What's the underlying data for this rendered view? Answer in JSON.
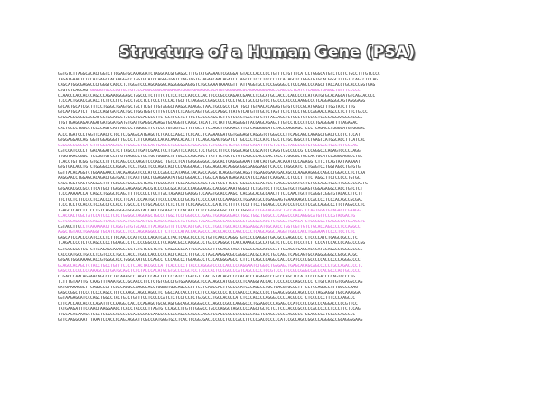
{
  "slide": {
    "title": "Structure of a Human Gene (PSA)"
  },
  "colors": {
    "background": "#ffffff",
    "sequence_text": "#111111",
    "exon_highlight": "#d43ad4",
    "title_fill": "#ffffff",
    "title_outline": "#444444"
  },
  "sequence_lines": [
    {
      "text": "GGTGTCTTAGGCACACTGGTCTTGGAGTGCAAAGGATCTAGGCACGTGAGGCTTTGTATGAGAAGTCGGGGATGTACCCACCCCCTGTTTCTGTTTCATCCTGGGCATGTCTCCTCTGCCTTTGTCCCC",
      "hl": false,
      "hl_start": null
    },
    {
      "text": "TAGATGAAGTCTCCATGAGCTACAAGGGCCTGGTGCATCCAGGGTGATCTAGTGGTGCAGAACAACAGATCTTAGCTCTCCCTCCCCTTCACAGCTCTGGGTGTGCACGGGCTTTGTCCAGCCTCCAG",
      "hl": false,
      "hl_start": null
    },
    {
      "text": "CAGCATGGCGAGGCCCTGGGTCAGCCTCTGGGTCCCAGCAGGGCAGGGGGGAGGGTCTGCGAAATAAAGGTTTATTAGGTGCCTCCGGGGGCCTCCCAGCCCCAGCTTACCACCTGCACCCGGTGAG",
      "hl": false,
      "hl_start": null
    },
    {
      "text": "CTGTGTCAGCAGTGGGGGTGCCCGGTGCTGTCCCAGGCGGGCGAGGAGATGGGTGAGAGGCGCATGTGGGGGGCGCAGAAGGGGAGCCCAGCCCTCATCTCAAGCTGAGGCTGTTTCCCCC",
      "hl": true,
      "hl_start": 12
    },
    {
      "text": "CCAACCCACCACCCAGCCCAGAAGGGGAGCTGGCCCTCTTTTCTCTCCTCCCACCCCCACTTCCCGCCCAGACCGAACCTCGCATGCCACCCCAGCCCCCATCATGTGCACAGCATGTCAGCACCCC",
      "hl": false,
      "hl_start": null
    },
    {
      "text": "TCCCACTGCACCACACCTCTTCCCTCTGCCTGCCTCCTCCCTCCCACTGCTTCTAGGGCCGAGCCCCTCCCTGCCTGCCCTGTCCTGCCCCACCCCAAGGCCCTCAGGAGGGCAGTAGGGAGG",
      "hl": false,
      "hl_start": null
    },
    {
      "text": "GTCAGTGCATCGCTTTCCTGGGCTGAGTGCTGCTTCGTTTGTAGGCTAAGGCAGAGGCTAACTGCCGCCTCATTGCTTGTAACACAGAGTGTGTCTCCGCATGAGCTTTGGTATCTTTG",
      "hl": false,
      "hl_start": null
    },
    {
      "text": "GTCAATGCATCTTTGCCCAGTGATCACTGCTTGGTGGTCTTTGTCCATCTCAGTCAGTTGCGCCAGGCTTATGTCATGTTTGCTCTAGTTCTCTGCCTGCCCAGAACCAGCCCTCTTTCTGCCC",
      "hl": false,
      "hl_start": null
    },
    {
      "text": "GTGGAGCGCGGCACGATCCTGGAGGCTCCCCTGCACGCCTTCTGCTTCCTCTTCCTGCCCCAGGTCTTCTCCCCTGCCTCTCTCTAGCAGCTCTGCCTGTCCCCTCCCCAGGAAGGCACGGC",
      "hl": false,
      "hl_start": null
    },
    {
      "text": "TTGTTGAGGAGACAGATGATGGATGATGTGATTGAGGCAGAGATGCAGGTTCAAGCTACATCTCTATTGCAGAGGTTACGAGCAGAGCTTGTCCTCCCCTCCCTGAGGGATTTTAGAGAC",
      "hl": false,
      "hl_start": null
    },
    {
      "text": "CACTGCCCTGGCCTCCCCAGTCACTAGCCCTGGGGCTTCTCCCTGTGGTCCTTCTGCCTTCCAGCTTGCAACCTTCTCAGGGGCATCTACCAAGGAGCTCCCTCAGACCTGGGCATGTGGGAC",
      "hl": false,
      "hl_start": null
    },
    {
      "text": "ACCCTGATCCCTGGTTCAACTCTGCTCCGAGGCATGAGGTCTCACCCAGCCTCCCACCTCAGAAGGATGGTGAGAGTCAGGGTGTGGGCCCTTCAGCAGCCAGAGCTGACTCCCTCTCCAT",
      "hl": false,
      "hl_start": null
    },
    {
      "text": "GTGGAGGAGCAGTGGTTGGAGGGCTTGCCCTCTTCAAGGCCACACAAACACACTTTCCAGCAGAGTGGATCTTGCCCCTCCCATCTGCCTCTGCTGGCCTCTGAGTCATGGCAGCTTCATCAC",
      "hl": false,
      "hl_start": null
    },
    {
      "text": "CGGGCCCGGCCATCTTTGGCAAGACCTTGGGCCTGCCAGTGAGCCTCGCGCCGTGGACCCTGTCCGTCTGTCCTACTCACATTCTGTCCTCCTAGGCCGTGTGGCGCCTGCCTGTCCCAG",
      "hl": true,
      "hl_start": 0
    },
    {
      "text": "CGTCCATCCCCTTGACAGGATCCTCTTAGCCTTGATCGAACTCCTTGATTCCACCCTCCTGTCCTTTCCTGGACAGTCCGCATCTCAGGTCGCCGCCGTCCCGGGCCCAGAGTGCCCCAGG",
      "hl": false,
      "hl_start": null
    },
    {
      "text": "TTGGTAACCGGCTTCCGGTGTCCCTGTGAGGCCTGCTGGTGGAACTTTGCCCCAGCAGCTTATTTCTGCTCTGTCAGCCCACCCACTACCTCGGCGCTGCCACTGCATCCGGGGAGGCCTGC",
      "hl": false,
      "hl_start": null
    },
    {
      "text": "TCACCTGTTCGGTGTGCCCTTTCCCAGCCCCAAGGTCCCAGCTTGTCCTCATGCGGGGGGCCGGCACTCAGGAGAAATTATCAGTGACACAAATCCCAAAGGTCTTCTCAGTAATAAAAAT",
      "hl": false,
      "hl_start": null
    },
    {
      "text": "GTGTGACAGCTGTCTGGGGCCCCAGGACTCCCTGCCTCCCAGCCACTCCCAGGCAGCCTGGCAGGCACAGGGCGGCGAGGGAGGTCACCCTAGGCATCTCTGAGTCCTGGTAGGCTGTGTG",
      "hl": false,
      "hl_start": null
    },
    {
      "text": "GGTTACACAGGTCTGGAAGAACCTACAGAGGATCCCATCCCCAGCCCATAAGCTACAGCCAGGCTCAGGGTGGCAGGTTGGAGGGAATGACAGCCCAAAAAGGGCCAGCCTGGACCCTCTCAA",
      "hl": false,
      "hl_start": null
    },
    {
      "text": "AAGGAACCTGGAGCACAGACTGGTGACTTCAATTGACTGGAGGAATATGCTGGGACCCTGGCCATGGATGAGCACCATCCCAGCTCAAGACCCTCCCTTTTCTAGGCTTCTCCCCCTGTGC",
      "hl": false,
      "hl_start": null
    },
    {
      "text": "CAGCTGGTGACTGAGGGCTTTTGGGGCTGGGGCCTGAGTTGGGGATTTGCCAGAGCCAGCTGGTGCCTTCCCTGGCCCCCCACTCCTCAGGCGCCATCCTGTGCCAGGTGCCTTGGCCCCACTG",
      "hl": false,
      "hl_start": null
    },
    {
      "text": "GTGACACGCCGCCTTCATGCTTGAGGCGAGAAGCAGCGTCCCCGCGGCATGCCCAGGAAGGCCACGGCAAATGGGCTTCTGGTGCTTTCCGGTGCTTGAAGTCGGAGAGGCCACCTGTCTCT",
      "hl": false,
      "hl_start": null
    },
    {
      "text": "TCCCAAAAACCATCAGCCTGGGCCCAGCTTTTCCCCCTGCTTACTAGAACTGAGGGTCCAAGTGCACCAAGCTCACGGCACGCCAACTTTCCCAACTGCTTCAGGTCGGTGTACACCTTCTT",
      "hl": false,
      "hl_start": null
    },
    {
      "text": "TTCTGCTCTTCCCCTCCACCCCTCCCTTCATCCCAATGCTTCCCCCACCCTGCCGTCCCCCAATCCCAAAGCCCTGGAATGCCCGAGGAGTGAACAAGCCCCACCCCTCCCACAGCCGCGAC",
      "hl": false,
      "hl_start": null
    },
    {
      "text": "TCCCTCCTCCACCCTCCGCCTCCACCTCGCCCCTCTGCAGCCCTCTCTCTTTCCCAAGCCCCCATCTCTTTTCTCCTTTCCTGCAGCCCCATCCGTCCCTCCACCAGGCCCTTCTAGGCCCTC",
      "hl": false,
      "hl_start": null
    },
    {
      "text": "TGAGCTCACCTTTCCTGTCAGAGTGGGTGGGTGTACCAGCCGCAGCCCCCACACTTCTCCGTGGGGGCTTCTCTGGAGCCTGGCAGGTGCTGCCAGAGTCCAATGGATGTAGACTCGAAGG",
      "hl": true,
      "hl_start": 76
    },
    {
      "text": "CCACCACTGGCTATCCATCCCTCCCTGGGGCTAGGAGCTGCCCTGGCTCCTGGGCCCCGAGCTGCAGGGGACCTGGCTGGCTGGGCCCCAGGCCCACAGGGCATGTTCCCGTAGGACTG",
      "hl": true,
      "hl_start": 0
    },
    {
      "text": "CCTCCCAGGAGCCCAGGCTCAGCTCCAGTGCAGAGTGGTGAGCCAGCCCTGTGGGCTGGAGCAGCCCAGCGGGGCTGGGGCCACCTCTGGGCTGAACATCTGGGGGCTGAGGCCATGCACCTC",
      "hl": true,
      "hl_start": 0
    },
    {
      "text": "CGTAGCTTGCCTCAAAAAACTTCAGGTGTGTGCAGCTTACAGCGTTTTCCACAGTGACTCCCTGGCTGGCACCCAGGAGGCATGGCAACCTGGTGGTTGTCTGCACCAGCCCCTCCAGGCC",
      "hl": true,
      "hl_start": 9
    },
    {
      "text": "AGGCTGTAGCTGGAGGTTGCATCCGCCCTCCCAGCAGGGCCTTCTTCCCATACCACAGCCCCACGCACCCCAGCCCCCTCAGCAGGCCAGGTTGGCCACCTGAGAAATCCCCTGCTCTC",
      "hl": true,
      "hl_start": 0
    },
    {
      "text": "GAGCATCCACCCCATCCCCTCTTCCAACCCATTCCCCACATCACCTACTCAGCCCCCTCTGTTCAACCAGGGTGTCCCCGAGGCTGACGCCGAGGCCCTCTCCCCATCTGAGCCGCCCTC",
      "hl": false,
      "hl_start": null
    },
    {
      "text": "TCAGACCCCTCTCCAGCCCCCTGCAGCCCTCCCCCGGCCCCTCCAGACGCCCAGGGCCCTGCCCAGGGCTCACCAAAGCCGCCATGCTCTCCCCTTCCCTCTTCCCATCCACCCCAGCCCCGG",
      "hl": false,
      "hl_start": null
    },
    {
      "text": "GGTGCCGGGTCGTCTTCAGAGCAAAGCCCCTGTCTCCCTCTCTCAGGGGCCATTCCAGCCGTTTGCAGGTAGCTCGGCCAGGACCCCCTTGGAGCTGAGCACCCATCCAGGCCCGGGGCCCC",
      "hl": false,
      "hl_start": null
    },
    {
      "text": "CACCCATGCCTGCCCTCGTCCCCTGCCCACCCTGGCCACCCCCCACTCACCCTCTGCCCTAGCAAGGACGCCAGGCCACGCCATCTGCCAGCTCAGCAGTGCCAGGGGGGCCGCGCACGC",
      "hl": false,
      "hl_start": null
    },
    {
      "text": "GTGAGTGGGAAAGCACCGTGGGCACCTGGGCAATGCCCAGCCTCCCAGCCCTGCAGGCCTCCCACGGGAGCCTCTTCTCAGCCCAGGCCACCCCATCCCCGCCCCCACCCCCCAGGGCCCC",
      "hl": false,
      "hl_start": null
    },
    {
      "text": "GCAGGCACAGCTCTACCTGCCTGCTTCCCTCCACTACGCCCATTCACCCCCTTACCCAGGGTCCCCCAGCCCCAGGAATCTGGCCTGGGAGCTGAGCACAGCAGCCCCCTGCCAGACCCCTC",
      "hl": true,
      "hl_start": 0
    },
    {
      "text": "GAGCCCCCGCCCCAAAGCCCTGATGCAGCTCTCTACCCACATGCGTGCCCCGCTCCTCCCCACTCCCGGCCCATCAGCCCCCTCCGTCCCTTCCGCCGAGCCACCCACGCCCAGTGCCCCC",
      "hl": true,
      "hl_start": 0
    },
    {
      "text": "CCGACCCAACAGAAACAGCCTCTACAAAGCCCAGCCCCAGCTCCCCCATCCTGACGTCTACCGTACAGCCCCCACACCCAGAGGCCCGCCCAGCTCCATTCCCCGACCCCAGTCCCCTG",
      "hl": false,
      "hl_start": null
    },
    {
      "text": "TCTTTGTAATTGTCAAGTTTAAATGCCCGCAACCTTCTCTGTCGCCTGTGGAAAGGCTCCACAGCCATGGCCCCTCAAGGTACCACTCCCCACCCAGCCCCCTCTGTCATTGTGGAGGCCAG",
      "hl": false,
      "hl_start": null
    },
    {
      "text": "GATGAAAAGGCTTCAGGCCCTTCGCCAGGCCGAGCCACCTGGAGTGGCAGCCCCTTCCTCAGCCACTTCCCCCATCCCAGCCCTGCTGACGTGCCCTTTCCTCCAGGCCTTTGGCCCAAG",
      "hl": false,
      "hl_start": null
    },
    {
      "text": "GAGCCGGCTTCCCTCCCCAGCCTCTCCAAGCCAGCCAGGCTCTGGCCACCACCCTCCTTCCAGCCCCCTCCCGACCCCAGCCCCCTGGAGCGGGGCAGCCCCCTAGGAGGTTGCCAAAGGA",
      "hl": false,
      "hl_start": null
    },
    {
      "text": "GGTAAGAGGATCCCAGCTGGCCTACTGCCTGTTTCCTCCCCCATCTCTCCTCCCCTGCGCCCTGCCACGCCATCTCCCACCCCAGGGCCCCCACGCCCTCTCCCCCCTTTCCCAAGCCC",
      "hl": false,
      "hl_start": null
    },
    {
      "text": "CTTCACCAGCACCCCAGATTTCCAAGGCCACCCCAGAGGTGCGCAGTGGCAGCAGGGGCCCCAGCCCGGCCAGGGCCCTGGAGGCCCAGAGCCCATCCCCCGCCCCAGGACCCCCGTTCC",
      "hl": false,
      "hl_start": null
    },
    {
      "text": "TATGAAGATTTCCAACTAAGGAAGCTCACCTACCCCTTAGTGTCCAGCCTTGTCTGGGCCTGCCCAGGGTAGCCCCCAGCTGCTCTCCTCCCACCCGCCCCCACCCCCCTCCCTTCTCCAG",
      "hl": false,
      "hl_start": null
    },
    {
      "text": "TTGCACACAAAGCTCCCTCCGCCACCCGCCAGCGCACCAAGGCCCCCCAGCCCAGCCCAGCTCCAGCCGCCCCCGCCCACCTCCAGCCCCCCAGCCCCTGGAGCCGCTCCCCCAGCCCC",
      "hl": false,
      "hl_start": null
    },
    {
      "text": "GTTCAAGGCAATTTAAATCCACCCCAGCAGGATTCGCCGATGGGTGCCTCACTCCGGCGACCCCGCCTGCCCACCTTCCCGACGCCCCCATCCGCCAGCCGGCCCAGGGGCCGCAGGGGAAG",
      "hl": false,
      "hl_start": null
    }
  ]
}
